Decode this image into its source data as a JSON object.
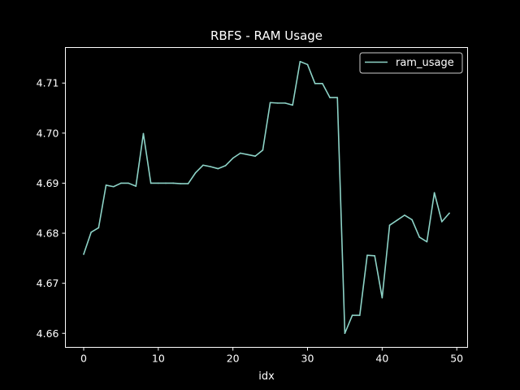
{
  "chart_data": {
    "type": "line",
    "title": "RBFS - RAM Usage",
    "xlabel": "idx",
    "ylabel": "",
    "xlim": [
      -2.45,
      51.45
    ],
    "ylim": [
      4.6572,
      4.7171
    ],
    "x_ticks": [
      0,
      10,
      20,
      30,
      40,
      50
    ],
    "y_ticks": [
      4.66,
      4.67,
      4.68,
      4.69,
      4.7,
      4.71
    ],
    "y_tick_labels": [
      "4.66",
      "4.67",
      "4.68",
      "4.69",
      "4.70",
      "4.71"
    ],
    "grid": false,
    "legend": "top-right",
    "series": [
      {
        "name": "ram_usage",
        "color": "#8dd3c7",
        "x": [
          0,
          1,
          2,
          3,
          4,
          5,
          6,
          7,
          8,
          9,
          10,
          11,
          12,
          13,
          14,
          15,
          16,
          17,
          18,
          19,
          20,
          21,
          22,
          23,
          24,
          25,
          26,
          27,
          28,
          29,
          30,
          31,
          32,
          33,
          34,
          35,
          36,
          37,
          38,
          39,
          40,
          41,
          42,
          43,
          44,
          45,
          46,
          47,
          48,
          49
        ],
        "values": [
          4.6758,
          4.6802,
          4.6811,
          4.6896,
          4.6893,
          4.69,
          4.69,
          4.6894,
          4.6999,
          4.69,
          4.69,
          4.69,
          4.69,
          4.6899,
          4.6899,
          4.6921,
          4.6936,
          4.6933,
          4.6929,
          4.6935,
          4.695,
          4.696,
          4.6957,
          4.6954,
          4.6966,
          4.7061,
          4.706,
          4.706,
          4.7056,
          4.7143,
          4.7137,
          4.7099,
          4.7099,
          4.7071,
          4.7071,
          4.66,
          4.6636,
          4.6636,
          4.6756,
          4.6755,
          4.6671,
          4.6816,
          4.6826,
          4.6836,
          4.6827,
          4.6792,
          4.6783,
          4.6881,
          4.6823,
          4.684
        ]
      }
    ]
  }
}
